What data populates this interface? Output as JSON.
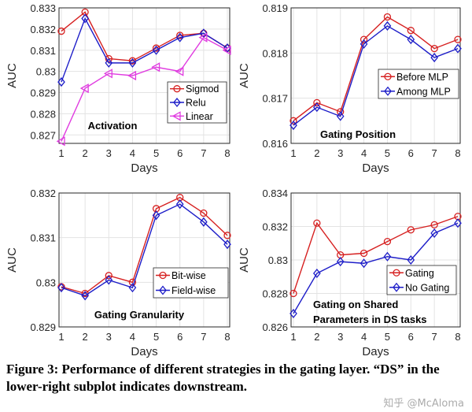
{
  "chart_data": [
    {
      "type": "line",
      "title": "Activation",
      "xlabel": "Days",
      "ylabel": "AUC",
      "x": [
        1,
        2,
        3,
        4,
        5,
        6,
        7,
        8
      ],
      "xticks": [
        "1",
        "2",
        "3",
        "4",
        "5",
        "6",
        "7",
        "8"
      ],
      "ylim": [
        0.8266,
        0.833
      ],
      "yticks": [
        "0.827",
        "0.828",
        "0.829",
        "0.83",
        "0.831",
        "0.832",
        "0.833"
      ],
      "grid": true,
      "legend": "middle-right",
      "series": [
        {
          "name": "Sigmod",
          "color": "#d62020",
          "marker": "circle",
          "values": [
            0.8319,
            0.8328,
            0.8306,
            0.8305,
            0.8311,
            0.8317,
            0.8318,
            0.8311
          ]
        },
        {
          "name": "Relu",
          "color": "#1c1cc8",
          "marker": "diamond",
          "values": [
            0.8295,
            0.8325,
            0.8304,
            0.8304,
            0.831,
            0.8316,
            0.8318,
            0.8311
          ]
        },
        {
          "name": "Linear",
          "color": "#e03ce0",
          "marker": "triangle-left",
          "values": [
            0.8267,
            0.8292,
            0.8299,
            0.8298,
            0.8302,
            0.83,
            0.8316,
            0.831
          ]
        }
      ]
    },
    {
      "type": "line",
      "title": "Gating Position",
      "xlabel": "Days",
      "ylabel": "AUC",
      "x": [
        1,
        2,
        3,
        4,
        5,
        6,
        7,
        8
      ],
      "xticks": [
        "1",
        "2",
        "3",
        "4",
        "5",
        "6",
        "7",
        "8"
      ],
      "ylim": [
        0.816,
        0.819
      ],
      "yticks": [
        "0.816",
        "0.817",
        "0.818",
        "0.819"
      ],
      "grid": true,
      "legend": "middle-right",
      "series": [
        {
          "name": "Before MLP",
          "color": "#d62020",
          "marker": "circle",
          "values": [
            0.8165,
            0.8169,
            0.8167,
            0.8183,
            0.8188,
            0.8185,
            0.8181,
            0.8183
          ]
        },
        {
          "name": "Among MLP",
          "color": "#1c1cc8",
          "marker": "diamond",
          "values": [
            0.8164,
            0.8168,
            0.8166,
            0.8182,
            0.8186,
            0.8183,
            0.8179,
            0.8181
          ]
        }
      ]
    },
    {
      "type": "line",
      "title": "Gating Granularity",
      "xlabel": "Days",
      "ylabel": "AUC",
      "x": [
        1,
        2,
        3,
        4,
        5,
        6,
        7,
        8
      ],
      "xticks": [
        "1",
        "2",
        "3",
        "4",
        "5",
        "6",
        "7",
        "8"
      ],
      "ylim": [
        0.829,
        0.832
      ],
      "yticks": [
        "0.829",
        "0.83",
        "0.831",
        "0.832"
      ],
      "grid": true,
      "legend": "lower-right",
      "series": [
        {
          "name": "Bit-wise",
          "color": "#d62020",
          "marker": "circle",
          "values": [
            0.8299,
            0.82975,
            0.83015,
            0.83,
            0.83165,
            0.8319,
            0.83155,
            0.83105
          ]
        },
        {
          "name": "Field-wise",
          "color": "#1c1cc8",
          "marker": "diamond",
          "values": [
            0.82988,
            0.8297,
            0.83005,
            0.82988,
            0.8315,
            0.83175,
            0.83135,
            0.83085
          ]
        }
      ]
    },
    {
      "type": "line",
      "title": "Gating on Shared Parameters in DS tasks",
      "title_lines": [
        "Gating on Shared",
        "Parameters in DS tasks"
      ],
      "xlabel": "Days",
      "ylabel": "AUC",
      "x": [
        1,
        2,
        3,
        4,
        5,
        6,
        7,
        8
      ],
      "xticks": [
        "1",
        "2",
        "3",
        "4",
        "5",
        "6",
        "7",
        "8"
      ],
      "ylim": [
        0.826,
        0.834
      ],
      "yticks": [
        "0.826",
        "0.828",
        "0.83",
        "0.832",
        "0.834"
      ],
      "grid": true,
      "legend": "middle-right",
      "series": [
        {
          "name": "Gating",
          "color": "#d62020",
          "marker": "circle",
          "values": [
            0.828,
            0.8322,
            0.8303,
            0.8304,
            0.8311,
            0.8318,
            0.8321,
            0.8326
          ]
        },
        {
          "name": "No Gating",
          "color": "#1c1cc8",
          "marker": "diamond",
          "values": [
            0.8268,
            0.8292,
            0.8299,
            0.8298,
            0.8302,
            0.83,
            0.8316,
            0.8322
          ]
        }
      ]
    }
  ],
  "caption": "Figure 3: Performance of different strategies in the gating layer. “DS” in the lower-right subplot indicates downstream.",
  "watermark": "知乎 @McAloma"
}
